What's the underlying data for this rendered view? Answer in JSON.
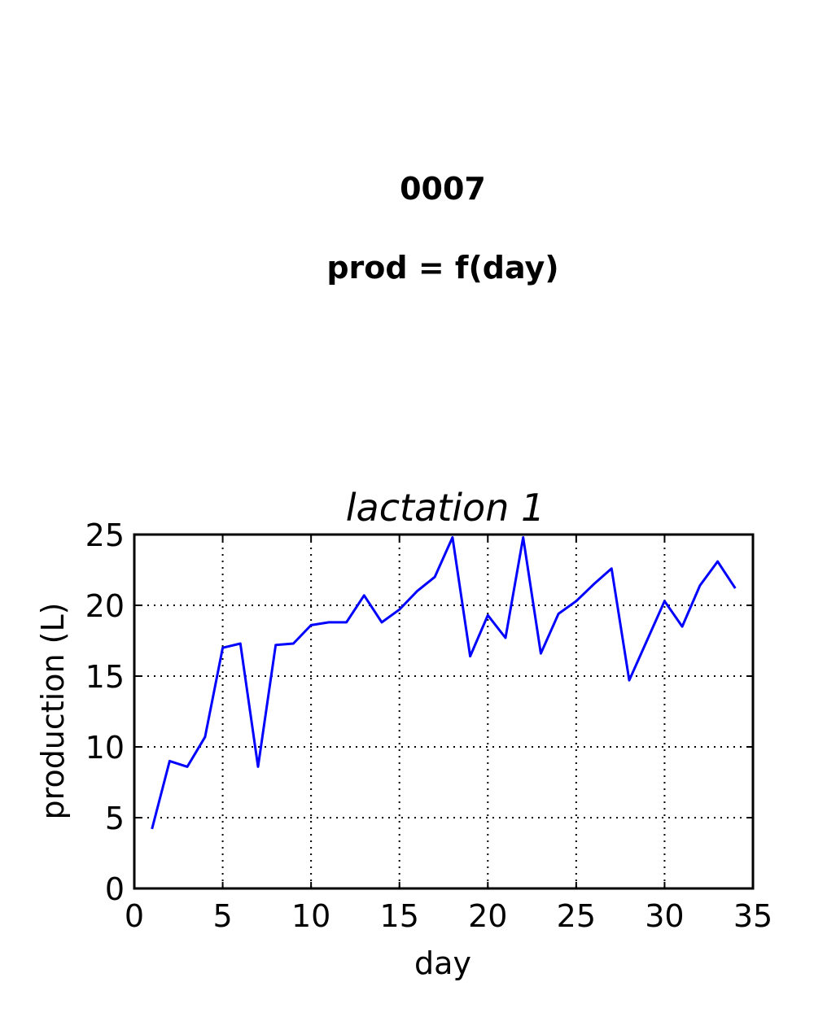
{
  "figure": {
    "id_title": "0007",
    "formula_title": "prod = f(day)"
  },
  "chart_data": {
    "type": "line",
    "title": "lactation 1",
    "xlabel": "day",
    "ylabel": "production (L)",
    "xlim": [
      0,
      35
    ],
    "ylim": [
      0,
      25
    ],
    "xticks": [
      0,
      5,
      10,
      15,
      20,
      25,
      30,
      35
    ],
    "yticks": [
      0,
      5,
      10,
      15,
      20,
      25
    ],
    "grid": true,
    "line_color": "#0000ff",
    "series": [
      {
        "x": [
          1,
          2,
          3,
          4,
          5,
          6,
          7,
          8,
          9,
          10,
          11,
          12,
          13,
          14,
          15,
          16,
          17,
          18,
          19,
          20,
          21,
          22,
          23,
          24,
          25,
          26,
          27,
          28,
          29,
          30,
          31,
          32,
          33,
          34
        ],
        "values": [
          4.2,
          9.0,
          8.6,
          10.7,
          17.0,
          17.3,
          8.6,
          17.2,
          17.3,
          18.6,
          18.8,
          18.8,
          20.7,
          18.8,
          19.7,
          21.0,
          22.0,
          24.8,
          16.4,
          19.3,
          17.7,
          24.8,
          16.6,
          19.4,
          20.3,
          21.5,
          22.6,
          14.7,
          17.5,
          20.3,
          18.5,
          21.4,
          23.1,
          21.2
        ]
      }
    ]
  }
}
